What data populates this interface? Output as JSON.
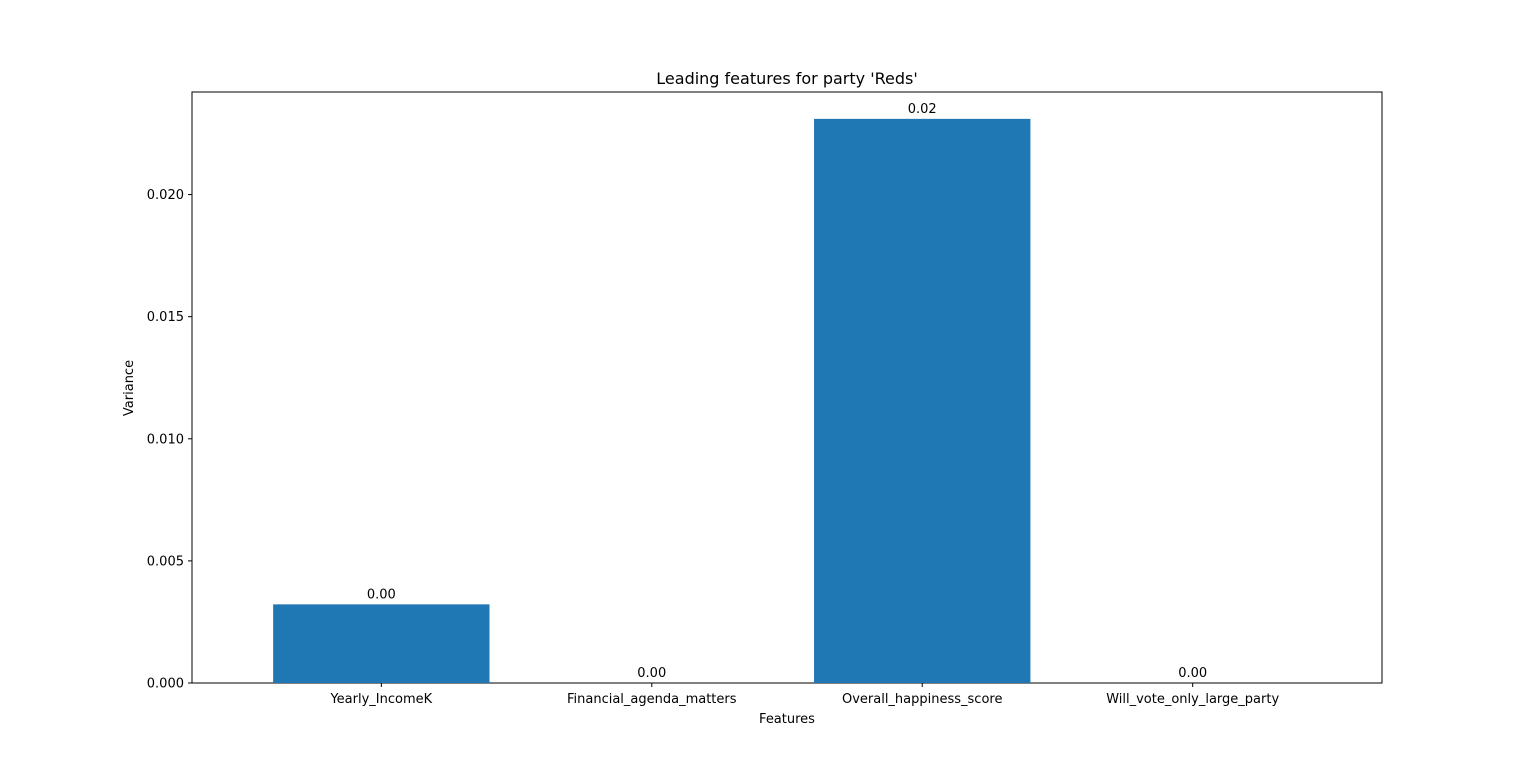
{
  "chart_data": {
    "type": "bar",
    "title": "Leading features for party 'Reds'",
    "xlabel": "Features",
    "ylabel": "Variance",
    "categories": [
      "Yearly_IncomeK",
      "Financial_agenda_matters",
      "Overall_happiness_score",
      "Will_vote_only_large_party"
    ],
    "values": [
      0.00322,
      0.0,
      0.0231,
      0.0
    ],
    "data_labels": [
      "0.00",
      "0.00",
      "0.02",
      "0.00"
    ],
    "ylim": [
      0,
      0.0242
    ],
    "yticks": [
      0,
      0.005,
      0.01,
      0.015,
      0.02
    ],
    "ytick_labels": [
      "0.000",
      "0.005",
      "0.010",
      "0.015",
      "0.020"
    ],
    "bar_color": "#1f77b4",
    "grid": false,
    "legend": "none"
  }
}
